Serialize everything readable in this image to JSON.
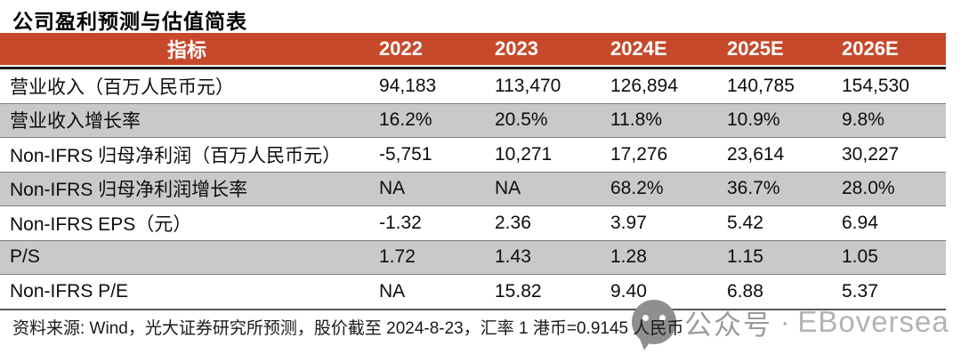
{
  "title": "公司盈利预测与估值简表",
  "table": {
    "header": {
      "indicator": "指标",
      "years": [
        "2022",
        "2023",
        "2024E",
        "2025E",
        "2026E"
      ]
    },
    "rows": [
      {
        "label": "营业收入（百万人民币元）",
        "values": [
          "94,183",
          "113,470",
          "126,894",
          "140,785",
          "154,530"
        ],
        "shaded": false
      },
      {
        "label": "营业收入增长率",
        "values": [
          "16.2%",
          "20.5%",
          "11.8%",
          "10.9%",
          "9.8%"
        ],
        "shaded": true
      },
      {
        "label": "Non-IFRS 归母净利润（百万人民币元）",
        "values": [
          "-5,751",
          "10,271",
          "17,276",
          "23,614",
          "30,227"
        ],
        "shaded": false
      },
      {
        "label": "Non-IFRS 归母净利润增长率",
        "values": [
          "NA",
          "NA",
          "68.2%",
          "36.7%",
          "28.0%"
        ],
        "shaded": true
      },
      {
        "label": "Non-IFRS EPS（元）",
        "values": [
          "-1.32",
          "2.36",
          "3.97",
          "5.42",
          "6.94"
        ],
        "shaded": false
      },
      {
        "label": "P/S",
        "values": [
          "1.72",
          "1.43",
          "1.28",
          "1.15",
          "1.05"
        ],
        "shaded": true
      },
      {
        "label": "Non-IFRS P/E",
        "values": [
          "NA",
          "15.82",
          "9.40",
          "6.88",
          "5.37"
        ],
        "shaded": false
      }
    ]
  },
  "footer": {
    "source_note": "资料来源: Wind，光大证券研究所预测，股价截至 2024-8-23，汇率 1 港币=0.9145 人民币"
  },
  "watermark": {
    "icon": "wechat-official-account-icon",
    "label": "公众号",
    "separator": "·",
    "brand": "EBoversea"
  },
  "colors": {
    "header_bg": "#C7492B",
    "header_text": "#FFFFFF",
    "shaded_row_bg": "#C9C9C9",
    "shaded_row_border": "#7F7F7F",
    "header_underline": "#1A1A1A",
    "table_bottom_border": "#555555",
    "watermark_gray": "#9B9B9B"
  }
}
